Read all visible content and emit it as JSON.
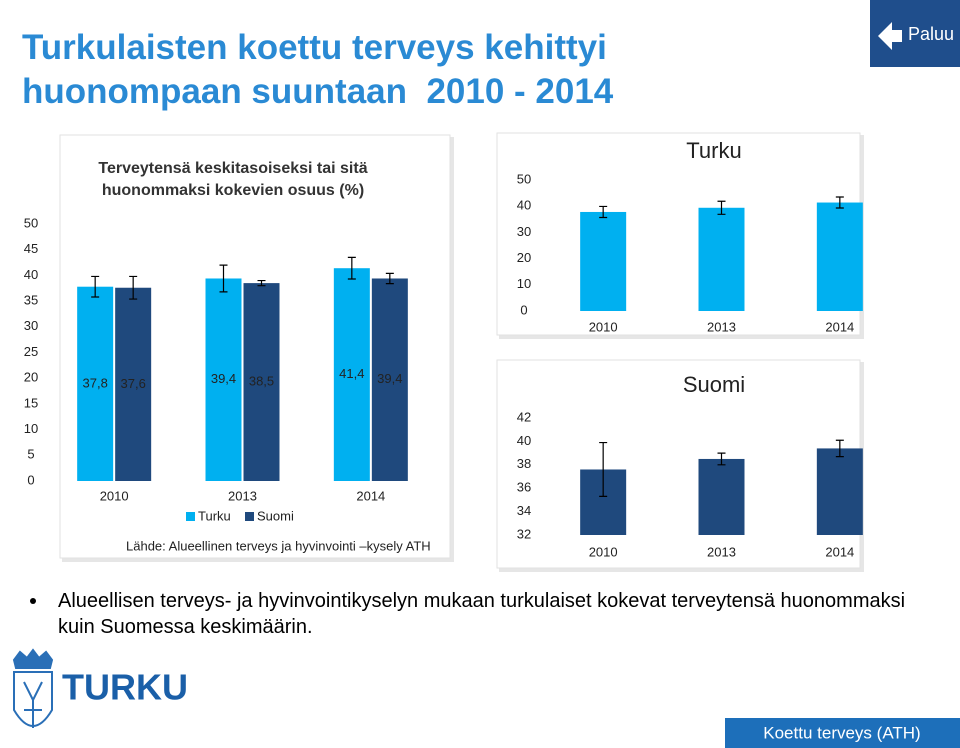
{
  "paluu": "Paluu",
  "title": "Turkulaisten koettu terveys kehittyi huonompaan suuntaan  2010 - 2014",
  "chart_data": [
    {
      "type": "bar",
      "title": "Terveytensä keskitasoiseksi tai sitä huonommaksi kokevien osuus (%)",
      "categories": [
        "2010",
        "2013",
        "2014"
      ],
      "series": [
        {
          "name": "Turku",
          "color": "#00b0f0",
          "values": [
            37.8,
            39.4,
            41.4
          ],
          "value_labels": [
            "37,8",
            "39,4",
            "41,4"
          ],
          "errors": [
            2,
            2.6,
            2.1
          ]
        },
        {
          "name": "Suomi",
          "color": "#1f497d",
          "values": [
            37.6,
            38.5,
            39.4
          ],
          "value_labels": [
            "37,6",
            "38,5",
            "39,4"
          ],
          "errors": [
            2.2,
            0.5,
            1
          ]
        }
      ],
      "ylim": [
        0,
        50
      ],
      "yticks": [
        0,
        5,
        10,
        15,
        20,
        25,
        30,
        35,
        40,
        45,
        50
      ],
      "legend": "bottom",
      "source": "Lähde: Alueellinen terveys ja hyvinvointi –kysely ATH"
    },
    {
      "type": "bar",
      "title": "Turku",
      "categories": [
        "2010",
        "2013",
        "2014"
      ],
      "color": "#00b0f0",
      "values": [
        37.8,
        39.4,
        41.4
      ],
      "errors": [
        2.1,
        2.5,
        2.1
      ],
      "ylim": [
        0,
        50
      ],
      "yticks": [
        0,
        10,
        20,
        30,
        40,
        50
      ]
    },
    {
      "type": "bar",
      "title": "Suomi",
      "categories": [
        "2010",
        "2013",
        "2014"
      ],
      "color": "#1f497d",
      "values": [
        37.6,
        38.5,
        39.4
      ],
      "errors": [
        2.3,
        0.5,
        0.7
      ],
      "ylim": [
        32,
        42
      ],
      "yticks": [
        32,
        34,
        36,
        38,
        40,
        42
      ]
    }
  ],
  "bullet": "Alueellisen terveys- ja hyvinvointikyselyn mukaan turkulaiset kokevat terveytensä huonommaksi kuin Suomessa keskimäärin.",
  "logo_text": "TURKU",
  "footer": "Koettu terveys (ATH)"
}
